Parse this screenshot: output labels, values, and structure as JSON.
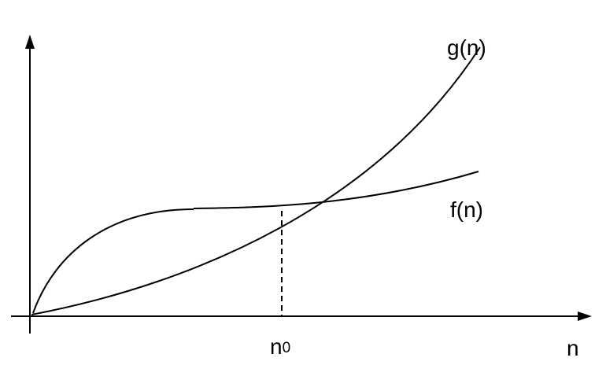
{
  "labels": {
    "g_curve": "g(n)",
    "f_curve": "f(n)",
    "threshold_base": "n",
    "threshold_subscript": "0",
    "x_axis": "n"
  },
  "colors": {
    "ink": "#000000",
    "background": "#ffffff"
  }
}
